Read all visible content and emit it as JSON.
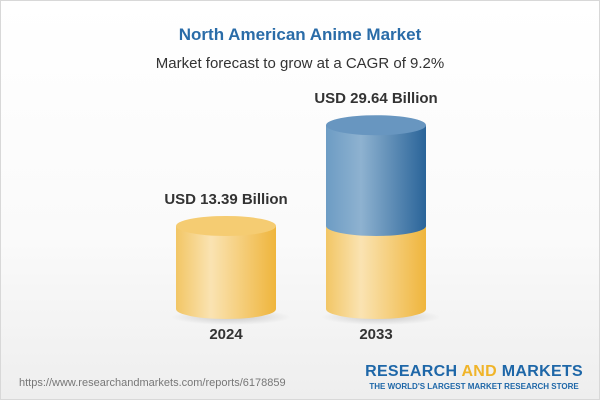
{
  "chart_data": {
    "type": "bar",
    "title": "North American Anime Market",
    "subtitle": "Market forecast to grow at a CAGR of 9.2%",
    "categories": [
      "2024",
      "2033"
    ],
    "values": [
      13.39,
      29.64
    ],
    "value_labels": [
      "USD 13.39 Billion",
      "USD 29.64 Billion"
    ],
    "unit": "USD Billion",
    "style": "3d-cylinder",
    "colors": {
      "base": "#f2c55c",
      "growth": "#4a85b8",
      "title": "#2a6ca8"
    }
  },
  "footer": {
    "url": "https://www.researchandmarkets.com/reports/6178859",
    "logo_part1": "RESEARCH ",
    "logo_part2": "AND",
    "logo_part3": " MARKETS",
    "tagline": "THE WORLD'S LARGEST MARKET RESEARCH STORE"
  }
}
